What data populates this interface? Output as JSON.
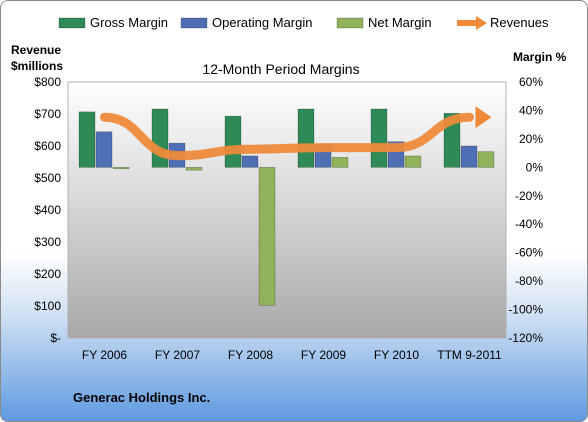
{
  "chart_data": {
    "type": "bar",
    "title": "12-Month Period Margins",
    "company": "Generac Holdings Inc.",
    "y_left_label": "Revenue\n$millions",
    "y_right_label": "Margin %",
    "categories": [
      "FY 2006",
      "FY 2007",
      "FY 2008",
      "FY 2009",
      "FY 2010",
      "TTM 9-2011"
    ],
    "y_left_ticks": [
      "$800",
      "$700",
      "$600",
      "$500",
      "$400",
      "$300",
      "$200",
      "$100",
      "$-"
    ],
    "y_right_ticks": [
      "60%",
      "40%",
      "20%",
      "0%",
      "-20%",
      "-40%",
      "-60%",
      "-80%",
      "-100%",
      "-120%"
    ],
    "ylim_left": [
      0,
      800
    ],
    "ylim_right": [
      -120,
      60
    ],
    "series": [
      {
        "name": "Gross Margin",
        "axis": "right",
        "kind": "bar",
        "color": "#2e8b57",
        "values": [
          39,
          41,
          36,
          41,
          41,
          38
        ]
      },
      {
        "name": "Operating Margin",
        "axis": "right",
        "kind": "bar",
        "color": "#4f6fb5",
        "values": [
          25,
          17,
          8,
          16,
          18,
          15
        ]
      },
      {
        "name": "Net Margin",
        "axis": "right",
        "kind": "bar",
        "color": "#8fb25a",
        "values": [
          -1,
          -2,
          -97,
          7,
          8,
          11
        ]
      },
      {
        "name": "Revenues",
        "axis": "left",
        "kind": "line",
        "color": "#ee8a3a",
        "values": [
          690,
          570,
          590,
          595,
          595,
          690
        ]
      }
    ],
    "legend_position": "top",
    "grid": false
  }
}
